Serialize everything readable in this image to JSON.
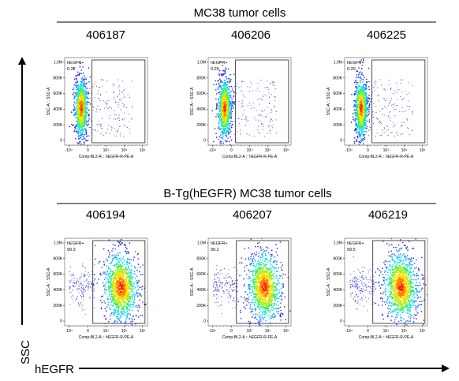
{
  "groups": [
    {
      "title": "MC38 tumor cells",
      "panels": [
        {
          "sample": "406187",
          "gate_label": "hEGFR+",
          "gate_value": "0.22"
        },
        {
          "sample": "406206",
          "gate_label": "hEGFR+",
          "gate_value": "0.29"
        },
        {
          "sample": "406225",
          "gate_label": "hEGFR+",
          "gate_value": "0.20"
        }
      ]
    },
    {
      "title": "B-Tg(hEGFR) MC38 tumor cells",
      "panels": [
        {
          "sample": "406194",
          "gate_label": "hEGFR+",
          "gate_value": "99.3"
        },
        {
          "sample": "406207",
          "gate_label": "hEGFR+",
          "gate_value": "99.2"
        },
        {
          "sample": "406219",
          "gate_label": "hEGFR+",
          "gate_value": "99.5"
        }
      ]
    }
  ],
  "axes": {
    "y_main": "SSC",
    "x_main": "hEGFR",
    "panel_y_label": "SSC-A :: SSC-A",
    "panel_x_label": "Comp-BL2-A :: hEGFR-R-PE-A",
    "y_ticks": [
      "0",
      "200K",
      "400K",
      "600K",
      "800K",
      "1.0M"
    ],
    "x_ticks": [
      "-10⁴",
      "0",
      "10⁴",
      "10⁵",
      "10⁶"
    ]
  },
  "chart_data": {
    "type": "scatter",
    "plot_style": "flow cytometry pseudocolor density plots",
    "x_axis": "Comp-BL2-A :: hEGFR-R-PE-A",
    "y_axis": "SSC-A :: SSC-A",
    "x_scale": "biexponential",
    "y_ylim": [
      0,
      1000000
    ],
    "x_ticks": [
      "-10⁴",
      "0",
      "10⁴",
      "10⁵",
      "10⁶"
    ],
    "y_ticks": [
      "0",
      "200K",
      "400K",
      "600K",
      "800K",
      "1.0M"
    ],
    "gate": "hEGFR+",
    "series": [
      {
        "group": "MC38 tumor cells",
        "sample": "406187",
        "hEGFR_positive_pct": 0.22
      },
      {
        "group": "MC38 tumor cells",
        "sample": "406206",
        "hEGFR_positive_pct": 0.29
      },
      {
        "group": "MC38 tumor cells",
        "sample": "406225",
        "hEGFR_positive_pct": 0.2
      },
      {
        "group": "B-Tg(hEGFR) MC38 tumor cells",
        "sample": "406194",
        "hEGFR_positive_pct": 99.3
      },
      {
        "group": "B-Tg(hEGFR) MC38 tumor cells",
        "sample": "406207",
        "hEGFR_positive_pct": 99.2
      },
      {
        "group": "B-Tg(hEGFR) MC38 tumor cells",
        "sample": "406219",
        "hEGFR_positive_pct": 99.5
      }
    ]
  }
}
